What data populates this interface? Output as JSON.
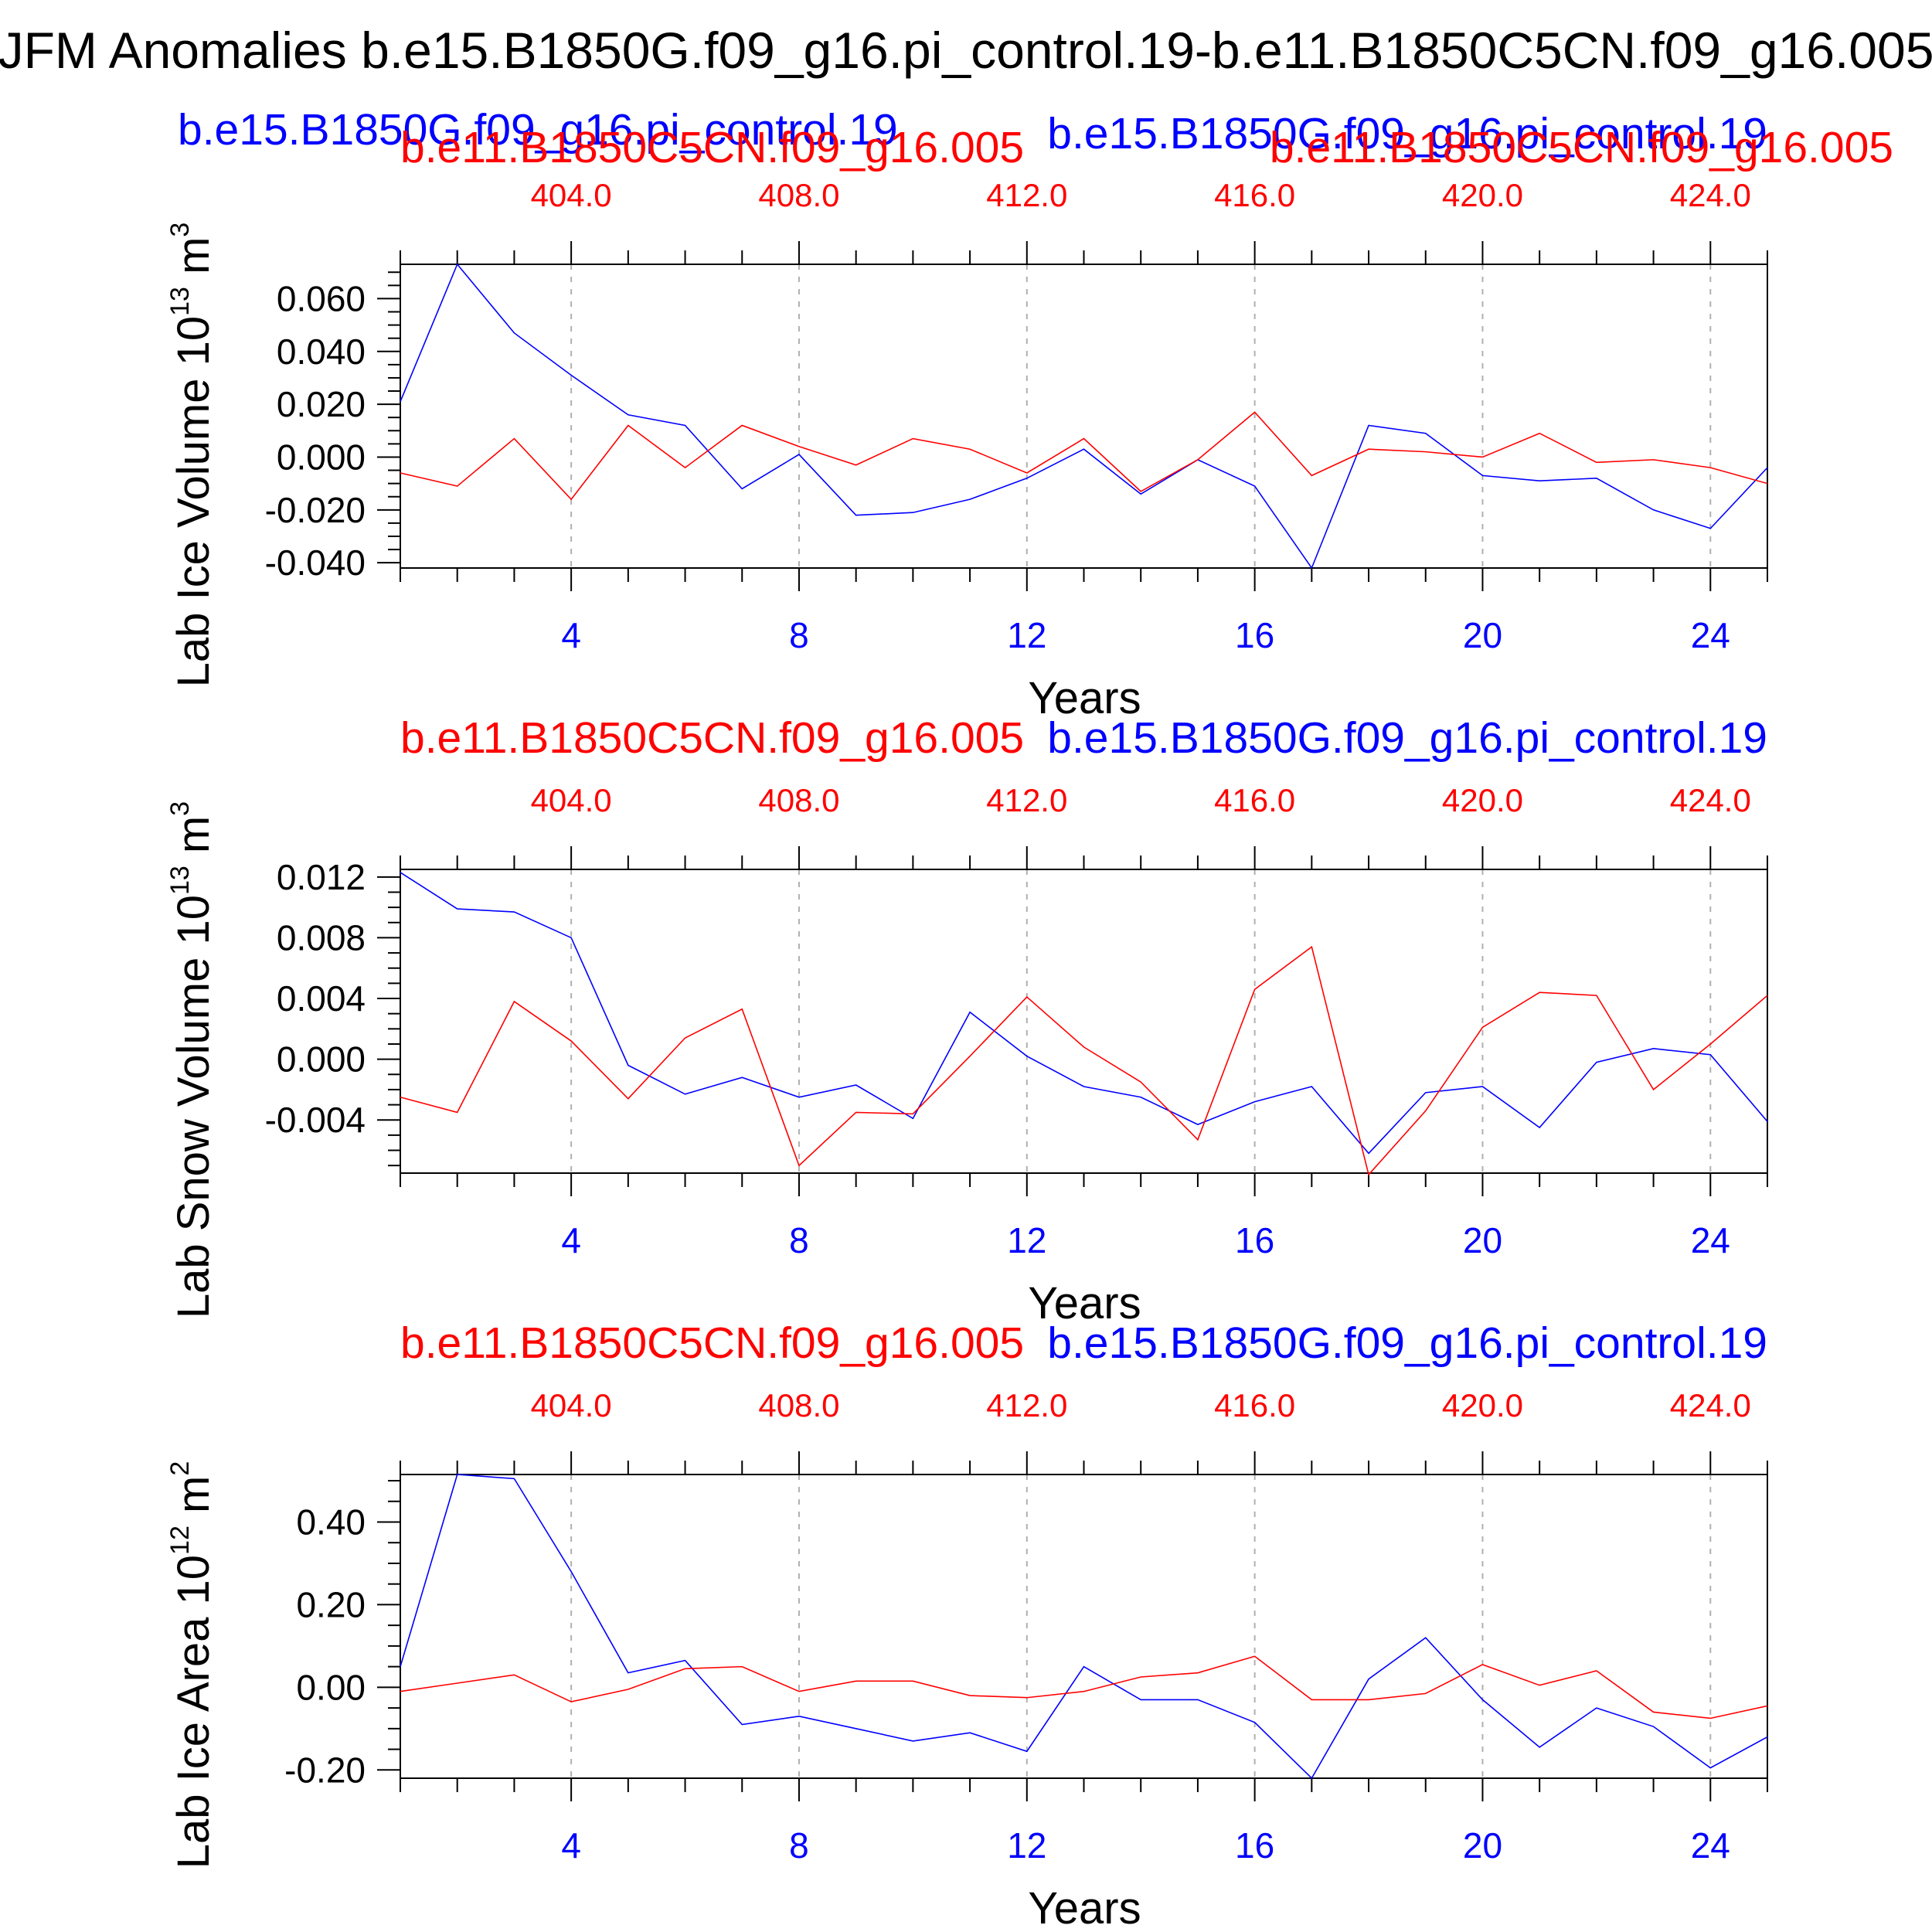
{
  "figure": {
    "title": "JFM Anomalies b.e15.B1850G.f09_g16.pi_control.19-b.e11.B1850C5CN.f09_g16.005",
    "colors": {
      "blue": "#0000ff",
      "red": "#ff0000",
      "axis": "#000000",
      "grid": "#b0b0b0"
    }
  },
  "chart_data": [
    {
      "type": "line",
      "ylabel_main": "Lab Ice Volume 10",
      "ylabel_exp": "13",
      "ylabel_unit": " m",
      "ylabel_unit_exp": "3",
      "xlabel": "Years",
      "ylim": [
        -0.042,
        0.073
      ],
      "xlim": [
        1,
        25
      ],
      "yticks": [
        -0.04,
        -0.02,
        0,
        0.02,
        0.04,
        0.06
      ],
      "ytick_labels": [
        "-0.040",
        "-0.020",
        "0.000",
        "0.020",
        "0.040",
        "0.060"
      ],
      "yminor_step": 0.005,
      "xticks": [
        4,
        8,
        12,
        16,
        20,
        24
      ],
      "xtick_labels": [
        "4",
        "8",
        "12",
        "16",
        "20",
        "24"
      ],
      "top_ticks": [
        404,
        408,
        412,
        416,
        420,
        424
      ],
      "top_tick_labels": [
        "404.0",
        "408.0",
        "412.0",
        "416.0",
        "420.0",
        "424.0"
      ],
      "top_offset": 400,
      "header_labels": [
        {
          "text": "b.e11.B1850C5CN.f09_g16.005",
          "color": "red"
        },
        {
          "text": "b.e15.B1850G.f09_g16.pi_control.19",
          "color": "blue"
        },
        {
          "text": "b.e15.B1850G.f09_g16.pi_control.19",
          "color": "blue"
        },
        {
          "text": "b.e11.B1850C5CN.f09_g16.005",
          "color": "red"
        }
      ],
      "grid": "dashed vertical at major x ticks",
      "series": [
        {
          "color": "blue",
          "x": [
            1,
            2,
            3,
            4,
            5,
            6,
            7,
            8,
            9,
            10,
            11,
            12,
            13,
            14,
            15,
            16,
            17,
            18,
            19,
            20,
            21,
            22,
            23,
            24,
            25
          ],
          "values": [
            0.021,
            0.073,
            0.047,
            0.031,
            0.016,
            0.012,
            -0.012,
            0.001,
            -0.022,
            -0.021,
            -0.016,
            -0.008,
            0.003,
            -0.014,
            -0.001,
            -0.011,
            -0.042,
            0.012,
            0.009,
            -0.007,
            -0.009,
            -0.008,
            -0.02,
            -0.027,
            -0.004
          ]
        },
        {
          "color": "red",
          "x": [
            1,
            2,
            3,
            4,
            5,
            6,
            7,
            8,
            9,
            10,
            11,
            12,
            13,
            14,
            15,
            16,
            17,
            18,
            19,
            20,
            21,
            22,
            23,
            24,
            25
          ],
          "values": [
            -0.006,
            -0.011,
            0.007,
            -0.016,
            0.012,
            -0.004,
            0.012,
            0.004,
            -0.003,
            0.007,
            0.003,
            -0.006,
            0.007,
            -0.013,
            -0.001,
            0.017,
            -0.007,
            0.003,
            0.002,
            0.0,
            0.009,
            -0.002,
            -0.001,
            -0.004,
            -0.01
          ]
        }
      ]
    },
    {
      "type": "line",
      "ylabel_main": "Lab Snow Volume 10",
      "ylabel_exp": "13",
      "ylabel_unit": " m",
      "ylabel_unit_exp": "3",
      "xlabel": "Years",
      "ylim": [
        -0.0075,
        0.0125
      ],
      "xlim": [
        1,
        25
      ],
      "yticks": [
        -0.004,
        0,
        0.004,
        0.008,
        0.012
      ],
      "ytick_labels": [
        "-0.004",
        "0.000",
        "0.004",
        "0.008",
        "0.012"
      ],
      "yminor_step": 0.001,
      "xticks": [
        4,
        8,
        12,
        16,
        20,
        24
      ],
      "xtick_labels": [
        "4",
        "8",
        "12",
        "16",
        "20",
        "24"
      ],
      "top_ticks": [
        404,
        408,
        412,
        416,
        420,
        424
      ],
      "top_tick_labels": [
        "404.0",
        "408.0",
        "412.0",
        "416.0",
        "420.0",
        "424.0"
      ],
      "top_offset": 400,
      "header_labels": [
        {
          "text": "b.e11.B1850C5CN.f09_g16.005",
          "color": "red"
        },
        {
          "text": "b.e15.B1850G.f09_g16.pi_control.19",
          "color": "blue"
        }
      ],
      "grid": "dashed vertical at major x ticks",
      "series": [
        {
          "color": "blue",
          "x": [
            1,
            2,
            3,
            4,
            5,
            6,
            7,
            8,
            9,
            10,
            11,
            12,
            13,
            14,
            15,
            16,
            17,
            18,
            19,
            20,
            21,
            22,
            23,
            24,
            25
          ],
          "values": [
            0.0123,
            0.0099,
            0.0097,
            0.008,
            -0.0004,
            -0.0023,
            -0.0012,
            -0.0025,
            -0.0017,
            -0.0039,
            0.0031,
            0.0002,
            -0.0018,
            -0.0025,
            -0.0043,
            -0.0028,
            -0.0018,
            -0.0062,
            -0.0022,
            -0.0018,
            -0.0045,
            -0.0002,
            0.0007,
            0.0003,
            -0.0041
          ]
        },
        {
          "color": "red",
          "x": [
            1,
            2,
            3,
            4,
            5,
            6,
            7,
            8,
            9,
            10,
            11,
            12,
            13,
            14,
            15,
            16,
            17,
            18,
            19,
            20,
            21,
            22,
            23,
            24,
            25
          ],
          "values": [
            -0.0025,
            -0.0035,
            0.0038,
            0.0012,
            -0.0026,
            0.0014,
            0.0033,
            -0.007,
            -0.0035,
            -0.0036,
            0.0002,
            0.0041,
            0.0008,
            -0.0015,
            -0.0053,
            0.0046,
            0.0074,
            -0.0076,
            -0.0034,
            0.0021,
            0.0044,
            0.0042,
            -0.002,
            0.001,
            0.0042
          ]
        }
      ]
    },
    {
      "type": "line",
      "ylabel_main": "Lab Ice Area 10",
      "ylabel_exp": "12",
      "ylabel_unit": " m",
      "ylabel_unit_exp": "2",
      "xlabel": "Years",
      "ylim": [
        -0.22,
        0.515
      ],
      "xlim": [
        1,
        25
      ],
      "yticks": [
        -0.2,
        0,
        0.2,
        0.4
      ],
      "ytick_labels": [
        "-0.20",
        "0.00",
        "0.20",
        "0.40"
      ],
      "yminor_step": 0.05,
      "xticks": [
        4,
        8,
        12,
        16,
        20,
        24
      ],
      "xtick_labels": [
        "4",
        "8",
        "12",
        "16",
        "20",
        "24"
      ],
      "top_ticks": [
        404,
        408,
        412,
        416,
        420,
        424
      ],
      "top_tick_labels": [
        "404.0",
        "408.0",
        "412.0",
        "416.0",
        "420.0",
        "424.0"
      ],
      "top_offset": 400,
      "header_labels": [
        {
          "text": "b.e11.B1850C5CN.f09_g16.005",
          "color": "red"
        },
        {
          "text": "b.e15.B1850G.f09_g16.pi_control.19",
          "color": "blue"
        }
      ],
      "grid": "dashed vertical at major x ticks",
      "series": [
        {
          "color": "blue",
          "x": [
            1,
            2,
            3,
            4,
            5,
            6,
            7,
            8,
            9,
            10,
            11,
            12,
            13,
            14,
            15,
            16,
            17,
            18,
            19,
            20,
            21,
            22,
            23,
            24,
            25
          ],
          "values": [
            0.05,
            0.515,
            0.505,
            0.28,
            0.035,
            0.065,
            -0.09,
            -0.07,
            -0.1,
            -0.13,
            -0.11,
            -0.155,
            0.05,
            -0.03,
            -0.03,
            -0.085,
            -0.22,
            0.02,
            0.12,
            -0.03,
            -0.145,
            -0.05,
            -0.095,
            -0.195,
            -0.12
          ]
        },
        {
          "color": "red",
          "x": [
            1,
            2,
            3,
            4,
            5,
            6,
            7,
            8,
            9,
            10,
            11,
            12,
            13,
            14,
            15,
            16,
            17,
            18,
            19,
            20,
            21,
            22,
            23,
            24,
            25
          ],
          "values": [
            -0.01,
            0.01,
            0.03,
            -0.035,
            -0.005,
            0.045,
            0.05,
            -0.01,
            0.015,
            0.015,
            -0.02,
            -0.025,
            -0.01,
            0.025,
            0.035,
            0.075,
            -0.03,
            -0.03,
            -0.015,
            0.055,
            0.005,
            0.04,
            -0.06,
            -0.075,
            -0.045
          ]
        }
      ]
    }
  ]
}
